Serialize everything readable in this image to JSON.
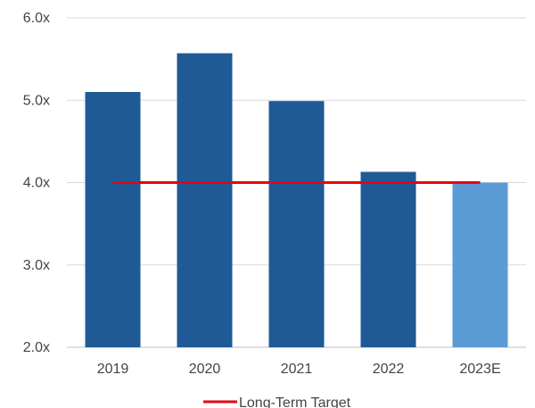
{
  "chart_data": {
    "type": "bar",
    "title": "",
    "xlabel": "",
    "ylabel": "",
    "categories": [
      "2019",
      "2020",
      "2021",
      "2022",
      "2023E"
    ],
    "series": [
      {
        "values": [
          5.1,
          5.57,
          4.99,
          4.13,
          4.0
        ],
        "colors": [
          "#1F5A96",
          "#1F5A96",
          "#1F5A96",
          "#1F5A96",
          "#5B9BD5"
        ]
      }
    ],
    "target_line": {
      "name": "Long-Term Target",
      "value": 4.0,
      "color": "#E30613"
    },
    "ylim": [
      2.0,
      6.0
    ],
    "yticks": [
      "2.0x",
      "3.0x",
      "4.0x",
      "5.0x",
      "6.0x"
    ],
    "ytick_values": [
      2.0,
      3.0,
      4.0,
      5.0,
      6.0
    ],
    "grid": true,
    "legend": {
      "position": "bottom",
      "entries": [
        "Long-Term Target"
      ]
    }
  }
}
